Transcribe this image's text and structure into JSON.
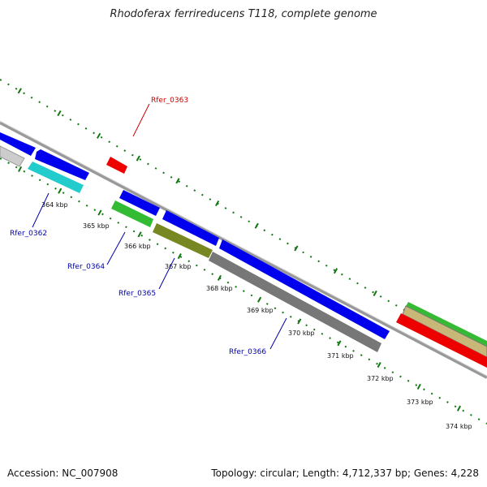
{
  "title": "Rhodoferax ferrireducens T118, complete genome",
  "footer": {
    "accession": "Accession: NC_007908",
    "topology": "Topology: circular; Length: 4,712,337 bp; Genes: 4,228"
  },
  "colors": {
    "blue": "#0000ee",
    "red": "#ee0000",
    "cyan": "#22cccc",
    "green": "#33bb33",
    "olive": "#778822",
    "gray": "#777777",
    "lightgray": "#cccccc",
    "tan": "#c8b878",
    "tick_green": "#117711",
    "backbone": "#888888",
    "label_blue": "#0000aa",
    "label_red": "#cc0000"
  },
  "ticks": [
    "364 kbp",
    "365 kbp",
    "366 kbp",
    "367 kbp",
    "368 kbp",
    "369 kbp",
    "370 kbp",
    "371 kbp",
    "372 kbp",
    "373 kbp",
    "374 kbp"
  ],
  "gene_labels": [
    "Rfer_0363",
    "Rfer_0362",
    "Rfer_0364",
    "Rfer_0365",
    "Rfer_0366"
  ]
}
